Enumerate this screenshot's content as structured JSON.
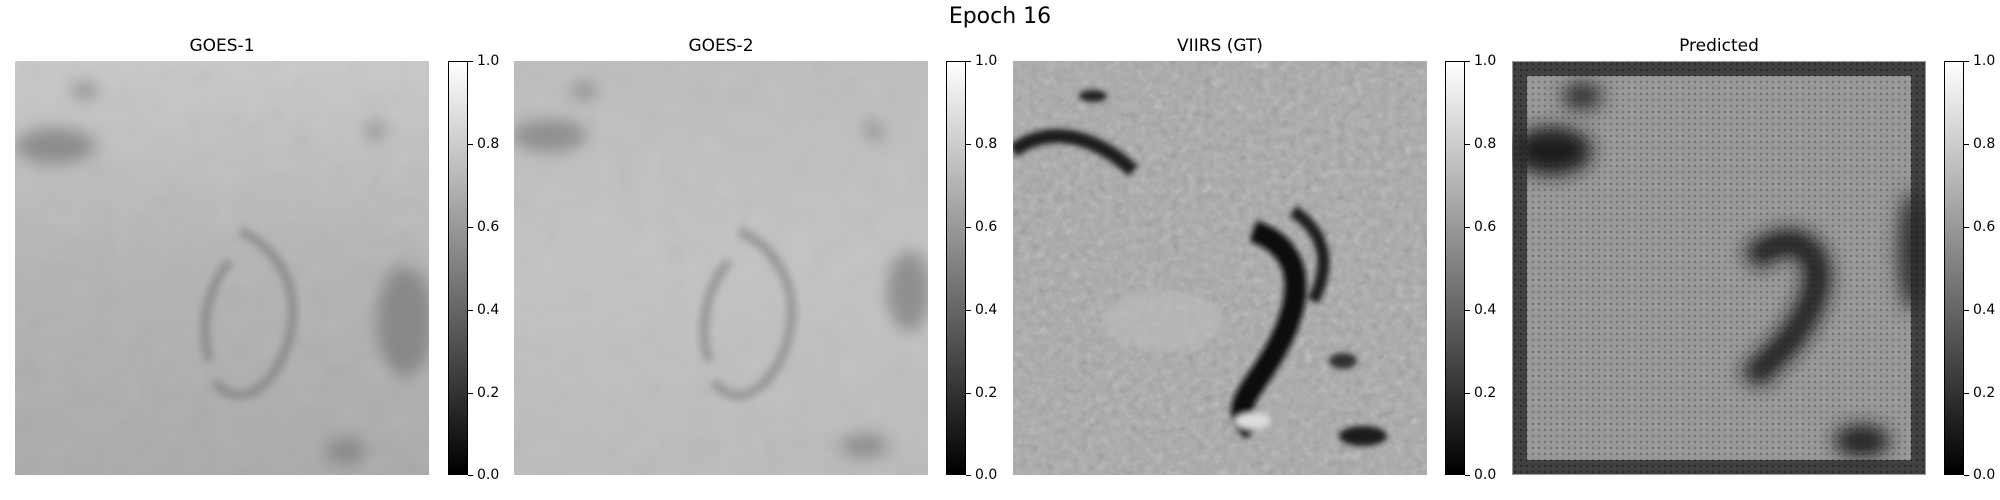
{
  "figure": {
    "title": "Epoch 16"
  },
  "panels": [
    {
      "title": "GOES-1"
    },
    {
      "title": "GOES-2"
    },
    {
      "title": "VIIRS (GT)"
    },
    {
      "title": "Predicted"
    }
  ],
  "colorbar": {
    "ticks": [
      "1.0",
      "0.8",
      "0.6",
      "0.4",
      "0.2",
      "0.0"
    ],
    "cmap": "grayscale black-to-white"
  }
}
